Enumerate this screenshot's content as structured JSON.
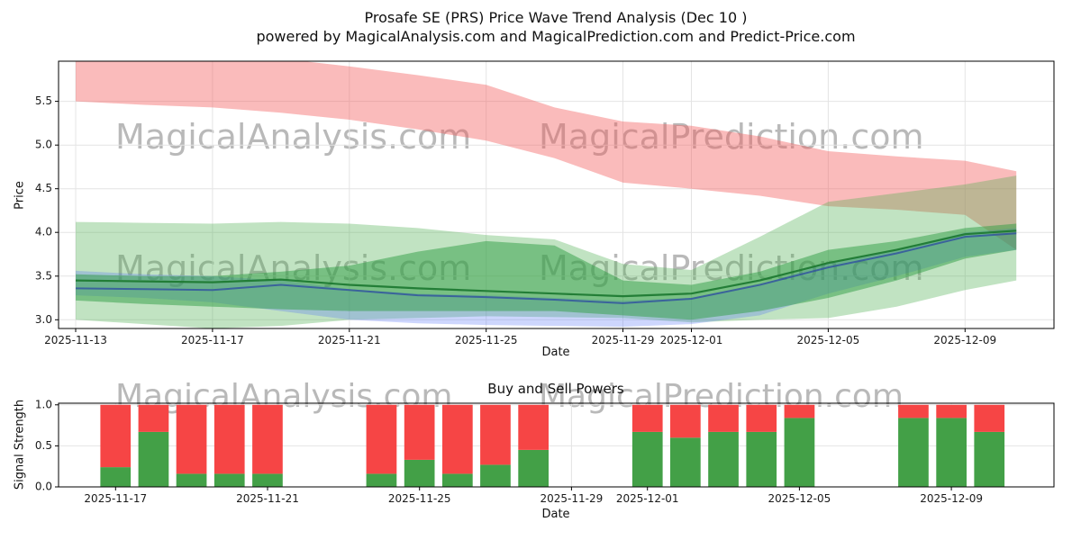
{
  "header": {
    "title": "Prosafe SE (PRS) Price Wave Trend Analysis (Dec 10 )",
    "subtitle": "powered by MagicalAnalysis.com and MagicalPrediction.com and Predict-Price.com"
  },
  "watermarks": {
    "analysis": "MagicalAnalysis.com",
    "prediction": "MagicalPrediction.com"
  },
  "chart_data": [
    {
      "type": "area",
      "title": "",
      "xlabel": "Date",
      "ylabel": "Price",
      "x_ticks": [
        "2025-11-13",
        "2025-11-17",
        "2025-11-21",
        "2025-11-25",
        "2025-11-29",
        "2025-12-01",
        "2025-12-05",
        "2025-12-09"
      ],
      "x_tick_days": [
        0,
        4,
        8,
        12,
        16,
        18,
        22,
        26
      ],
      "y_ticks": [
        3.0,
        3.5,
        4.0,
        4.5,
        5.0,
        5.5
      ],
      "xlim_days": [
        -0.5,
        28.6
      ],
      "ylim": [
        2.9,
        5.96
      ],
      "grid": true,
      "legend_position": "none",
      "x_dates": [
        "2025-11-13",
        "2025-11-15",
        "2025-11-17",
        "2025-11-19",
        "2025-11-21",
        "2025-11-23",
        "2025-11-25",
        "2025-11-27",
        "2025-11-29",
        "2025-12-01",
        "2025-12-03",
        "2025-12-05",
        "2025-12-07",
        "2025-12-09",
        "2025-12-10"
      ],
      "x_days": [
        0,
        2,
        4,
        6,
        8,
        10,
        12,
        14,
        16,
        18,
        20,
        22,
        24,
        26,
        27.5
      ],
      "bands": [
        {
          "name": "red-upper-forecast-band",
          "color": "#f25c5c",
          "opacity": 0.42,
          "upper": [
            6.05,
            6.05,
            6.02,
            5.99,
            5.9,
            5.8,
            5.69,
            5.43,
            5.27,
            5.22,
            5.1,
            4.93,
            4.87,
            4.82,
            4.7
          ],
          "lower": [
            5.5,
            5.46,
            5.43,
            5.37,
            5.29,
            5.18,
            5.05,
            4.85,
            4.57,
            4.5,
            4.42,
            4.3,
            4.26,
            4.2,
            3.8
          ]
        },
        {
          "name": "green-outer-band",
          "color": "#4caf50",
          "opacity": 0.35,
          "upper": [
            4.12,
            4.11,
            4.1,
            4.12,
            4.1,
            4.05,
            3.97,
            3.92,
            3.64,
            3.57,
            3.95,
            4.35,
            4.45,
            4.55,
            4.65
          ],
          "lower": [
            3.0,
            2.95,
            2.9,
            2.93,
            3.0,
            3.02,
            3.04,
            3.03,
            3.02,
            2.97,
            3.0,
            3.02,
            3.15,
            3.34,
            3.45
          ]
        },
        {
          "name": "blue-band",
          "color": "#4a6cf7",
          "opacity": 0.28,
          "upper": [
            3.56,
            3.52,
            3.5,
            3.45,
            3.35,
            3.3,
            3.28,
            3.25,
            3.22,
            3.25,
            3.4,
            3.65,
            3.8,
            4.0,
            4.05
          ],
          "lower": [
            3.28,
            3.25,
            3.2,
            3.1,
            3.0,
            2.96,
            2.94,
            2.93,
            2.92,
            2.95,
            3.05,
            3.3,
            3.5,
            3.72,
            3.8
          ]
        },
        {
          "name": "green-inner-band",
          "color": "#2f9e44",
          "opacity": 0.5,
          "upper": [
            3.52,
            3.5,
            3.5,
            3.55,
            3.62,
            3.78,
            3.9,
            3.85,
            3.45,
            3.4,
            3.55,
            3.8,
            3.9,
            4.05,
            4.1
          ],
          "lower": [
            3.22,
            3.18,
            3.15,
            3.12,
            3.1,
            3.1,
            3.1,
            3.1,
            3.05,
            3.0,
            3.1,
            3.25,
            3.45,
            3.7,
            3.8
          ]
        }
      ],
      "lines": [
        {
          "name": "trend-line-blue",
          "color": "#2b4aa0",
          "opacity": 0.75,
          "width": 2,
          "values": [
            3.36,
            3.35,
            3.34,
            3.4,
            3.34,
            3.28,
            3.26,
            3.23,
            3.19,
            3.24,
            3.4,
            3.6,
            3.76,
            3.95,
            3.99
          ]
        },
        {
          "name": "trend-line-green",
          "color": "#1f7a33",
          "opacity": 0.95,
          "width": 2.2,
          "values": [
            3.45,
            3.44,
            3.43,
            3.46,
            3.4,
            3.36,
            3.33,
            3.3,
            3.27,
            3.3,
            3.45,
            3.65,
            3.8,
            3.98,
            4.02
          ]
        }
      ]
    },
    {
      "type": "bar",
      "title": "Buy and Sell Powers",
      "xlabel": "Date",
      "ylabel": "Signal Strength",
      "x_ticks": [
        "2025-11-17",
        "2025-11-21",
        "2025-11-25",
        "2025-11-29",
        "2025-12-01",
        "2025-12-05",
        "2025-12-09"
      ],
      "x_tick_days": [
        0,
        4,
        8,
        12,
        14,
        18,
        22
      ],
      "y_ticks": [
        0.0,
        0.5,
        1.0
      ],
      "xlim_days": [
        -1.5,
        24.7
      ],
      "ylim": [
        0,
        1.02
      ],
      "grid": true,
      "legend_position": "none",
      "bar_width_days": 0.8,
      "categories": [
        "2025-11-17",
        "2025-11-18",
        "2025-11-19",
        "2025-11-20",
        "2025-11-21",
        "2025-11-24",
        "2025-11-25",
        "2025-11-26",
        "2025-11-27",
        "2025-11-28",
        "2025-12-01",
        "2025-12-02",
        "2025-12-03",
        "2025-12-04",
        "2025-12-05",
        "2025-12-08",
        "2025-12-09",
        "2025-12-10"
      ],
      "bar_days": [
        0,
        1,
        2,
        3,
        4,
        7,
        8,
        9,
        10,
        11,
        14,
        15,
        16,
        17,
        18,
        21,
        22,
        23
      ],
      "series": [
        {
          "name": "Buy",
          "color": "#43a047",
          "values": [
            0.24,
            0.67,
            0.16,
            0.16,
            0.16,
            0.16,
            0.33,
            0.16,
            0.27,
            0.45,
            0.67,
            0.6,
            0.67,
            0.67,
            0.84,
            0.84,
            0.84,
            0.67
          ]
        },
        {
          "name": "Sell",
          "color": "#f64545",
          "values": [
            0.76,
            0.33,
            0.84,
            0.84,
            0.84,
            0.84,
            0.67,
            0.84,
            0.73,
            0.55,
            0.33,
            0.4,
            0.33,
            0.33,
            0.16,
            0.16,
            0.16,
            0.33
          ]
        }
      ]
    }
  ]
}
